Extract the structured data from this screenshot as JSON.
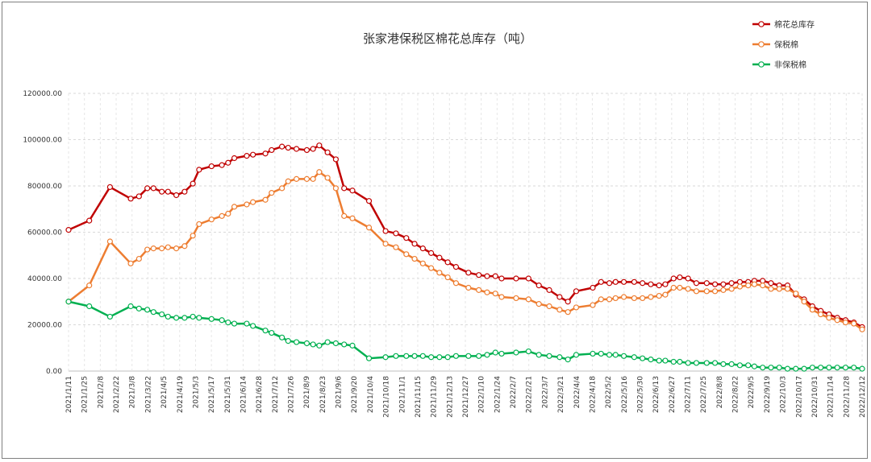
{
  "chart_data": {
    "type": "line",
    "title": "张家港保税区棉花总库存（吨）",
    "ylim": [
      0,
      120000
    ],
    "y_ticks": [
      "0.00",
      "20000.00",
      "40000.00",
      "60000.00",
      "80000.00",
      "100000.00",
      "120000.00"
    ],
    "y_tick_values": [
      0,
      20000,
      40000,
      60000,
      80000,
      100000,
      120000
    ],
    "grid": true,
    "legend_position": "top-right",
    "x_tick_labels": [
      "2021/1/11",
      "2021/1/25",
      "2021/2/8",
      "2021/2/22",
      "2021/3/8",
      "2021/3/22",
      "2021/4/5",
      "2021/4/19",
      "2021/5/3",
      "2021/5/17",
      "2021/5/31",
      "2021/6/14",
      "2021/6/28",
      "2021/7/12",
      "2021/7/26",
      "2021/8/9",
      "2021/8/23",
      "2021/9/6",
      "2021/9/20",
      "2021/10/4",
      "2021/10/18",
      "2021/11/1",
      "2021/11/15",
      "2021/11/29",
      "2021/12/13",
      "2021/12/27",
      "2022/1/10",
      "2022/1/24",
      "2022/2/7",
      "2022/2/21",
      "2022/3/7",
      "2022/3/21",
      "2022/4/4",
      "2022/4/18",
      "2022/5/2",
      "2022/5/16",
      "2022/5/30",
      "2022/6/13",
      "2022/6/27",
      "2022/7/11",
      "2022/7/25",
      "2022/8/8",
      "2022/8/22",
      "2022/9/5",
      "2022/9/19",
      "2022/10/3",
      "2022/10/17",
      "2022/10/31",
      "2022/11/14",
      "2022/11/28",
      "2022/12/12"
    ],
    "series": [
      {
        "name": "棉花总库存",
        "color": "#c00000",
        "values": [
          61000,
          65000,
          79500,
          74500,
          75500,
          79000,
          79000,
          77500,
          77500,
          76000,
          77500,
          81000,
          87000,
          88500,
          89000,
          90000,
          92000,
          93000,
          93500,
          94000,
          95500,
          97000,
          96500,
          96000,
          95500,
          96000,
          97500,
          94500,
          91500,
          79000,
          78000,
          73500,
          60500,
          59500,
          57500,
          55000,
          53000,
          51000,
          49000,
          47000,
          45000,
          42500,
          41500,
          41000,
          41000,
          40000,
          40000,
          40000,
          37000,
          35000,
          32000,
          30000,
          34500,
          36000,
          38500,
          38000,
          38500,
          38500,
          38500,
          38000,
          37500,
          37000,
          37500,
          40000,
          40500,
          40000,
          38000,
          38000,
          37500,
          37500,
          38000,
          38500,
          38500,
          39000,
          39000,
          38000,
          37000,
          37000,
          33000,
          31000,
          28000,
          26000,
          24500,
          23000,
          22000,
          21000,
          19000
        ],
        "x_pos": [
          0,
          2,
          4,
          6,
          6.8,
          7.6,
          8.2,
          9,
          9.6,
          10.4,
          11.2,
          12,
          12.6,
          13.8,
          14.8,
          15.4,
          16,
          17.2,
          17.8,
          19,
          19.6,
          20.6,
          21.2,
          22,
          23,
          23.6,
          24.2,
          25,
          25.8,
          26.6,
          27.4,
          29,
          30.6,
          31.6,
          32.6,
          33.4,
          34.2,
          35,
          35.8,
          36.6,
          37.4,
          38.6,
          39.6,
          40.4,
          41.2,
          41.8,
          43.2,
          44.4,
          45.4,
          46.4,
          47.4,
          48.2,
          49,
          50.6,
          51.4,
          52.2,
          52.8,
          53.6,
          54.6,
          55.4,
          56.2,
          57,
          57.6,
          58.4,
          59,
          59.8,
          60.6,
          61.6,
          62.4,
          63.2,
          64,
          64.8,
          65.6,
          66.2,
          67,
          67.8,
          68.6,
          69.4,
          70.2,
          71,
          71.8,
          72.6,
          73.4,
          74.2,
          75,
          75.8,
          76.6
        ]
      },
      {
        "name": "保税棉",
        "color": "#ed7d31",
        "values": [
          30000,
          37000,
          56000,
          46500,
          48500,
          52500,
          53000,
          53000,
          53500,
          53000,
          54000,
          58500,
          63500,
          65500,
          67000,
          68000,
          71000,
          72000,
          73000,
          74000,
          77000,
          79000,
          82000,
          83000,
          83000,
          83000,
          86000,
          83500,
          79000,
          67000,
          66000,
          62000,
          55000,
          53500,
          50500,
          48500,
          46500,
          44500,
          42500,
          40500,
          38000,
          36000,
          35000,
          34000,
          33500,
          32000,
          31500,
          31000,
          29000,
          28000,
          26500,
          25500,
          27500,
          28500,
          31000,
          31000,
          31500,
          32000,
          31500,
          31500,
          32000,
          32500,
          33000,
          36000,
          36000,
          35500,
          34500,
          34500,
          34500,
          35000,
          35500,
          36500,
          37000,
          37500,
          37000,
          35500,
          35500,
          35500,
          33500,
          30000,
          26500,
          24500,
          23000,
          22000,
          21000,
          20500,
          18000
        ],
        "x_pos": [
          0,
          2,
          4,
          6,
          6.8,
          7.6,
          8.2,
          9,
          9.6,
          10.4,
          11.2,
          12,
          12.6,
          13.8,
          14.8,
          15.4,
          16,
          17.2,
          17.8,
          19,
          19.6,
          20.6,
          21.2,
          22,
          23,
          23.6,
          24.2,
          25,
          25.8,
          26.6,
          27.4,
          29,
          30.6,
          31.6,
          32.6,
          33.4,
          34.2,
          35,
          35.8,
          36.6,
          37.4,
          38.6,
          39.6,
          40.4,
          41.2,
          41.8,
          43.2,
          44.4,
          45.4,
          46.4,
          47.4,
          48.2,
          49,
          50.6,
          51.4,
          52.2,
          52.8,
          53.6,
          54.6,
          55.4,
          56.2,
          57,
          57.6,
          58.4,
          59,
          59.8,
          60.6,
          61.6,
          62.4,
          63.2,
          64,
          64.8,
          65.6,
          66.2,
          67,
          67.8,
          68.6,
          69.4,
          70.2,
          71,
          71.8,
          72.6,
          73.4,
          74.2,
          75,
          75.8,
          76.6
        ]
      },
      {
        "name": "非保税棉",
        "color": "#00b050",
        "values": [
          30000,
          28000,
          23500,
          28000,
          27000,
          26500,
          25500,
          24500,
          23500,
          23000,
          23000,
          23500,
          23000,
          22500,
          22000,
          21000,
          20500,
          20500,
          19500,
          17500,
          16500,
          14500,
          13000,
          12500,
          12000,
          11500,
          11000,
          12500,
          12000,
          11500,
          11000,
          5500,
          6000,
          6500,
          6500,
          6500,
          6500,
          6000,
          6000,
          6000,
          6500,
          6500,
          6500,
          7000,
          8000,
          7500,
          8000,
          8500,
          7000,
          6500,
          6000,
          5000,
          7000,
          7500,
          7500,
          7000,
          7000,
          6500,
          6000,
          5500,
          5000,
          4500,
          4500,
          4000,
          4000,
          3500,
          3500,
          3500,
          3500,
          3000,
          3000,
          2500,
          2500,
          2000,
          1500,
          1500,
          1500,
          1000,
          1000,
          1000,
          1500,
          1500,
          1500,
          1500,
          1500,
          1500,
          1000
        ],
        "x_pos": [
          0,
          2,
          4,
          6,
          6.8,
          7.6,
          8.2,
          9,
          9.6,
          10.4,
          11.2,
          12,
          12.6,
          13.8,
          14.8,
          15.4,
          16,
          17.2,
          17.8,
          19,
          19.6,
          20.6,
          21.2,
          22,
          23,
          23.6,
          24.2,
          25,
          25.8,
          26.6,
          27.4,
          29,
          30.6,
          31.6,
          32.6,
          33.4,
          34.2,
          35,
          35.8,
          36.6,
          37.4,
          38.6,
          39.6,
          40.4,
          41.2,
          41.8,
          43.2,
          44.4,
          45.4,
          46.4,
          47.4,
          48.2,
          49,
          50.6,
          51.4,
          52.2,
          52.8,
          53.6,
          54.6,
          55.4,
          56.2,
          57,
          57.6,
          58.4,
          59,
          59.8,
          60.6,
          61.6,
          62.4,
          63.2,
          64,
          64.8,
          65.6,
          66.2,
          67,
          67.8,
          68.6,
          69.4,
          70.2,
          71,
          71.8,
          72.6,
          73.4,
          74.2,
          75,
          75.8,
          76.6
        ]
      }
    ]
  }
}
